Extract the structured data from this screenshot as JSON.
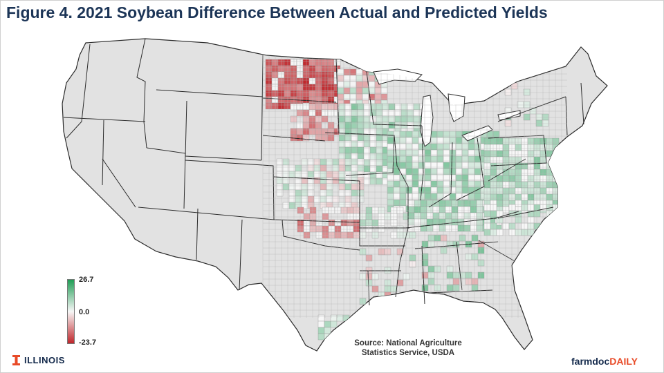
{
  "title": "Figure 4. 2021 Soybean Difference Between Actual and Predicted Yields",
  "legend": {
    "max_label": "26.7",
    "mid_label": "0.0",
    "min_label": "-23.7",
    "max_value": 26.7,
    "mid_value": 0.0,
    "min_value": -23.7,
    "colors": {
      "high": "#1f9d55",
      "mid": "#f7f7f7",
      "low": "#c0262b"
    }
  },
  "source": {
    "line1": "Source: National Agriculture",
    "line2": "Statistics Service, USDA"
  },
  "branding": {
    "illinois": "ILLINOIS",
    "farmdoc_a": "farmdoc",
    "farmdoc_b": "DAILY"
  },
  "map": {
    "land_color": "#e2e2e2",
    "border_color": "#2b2b2b",
    "county_border_color": "#9a9a9a"
  }
}
